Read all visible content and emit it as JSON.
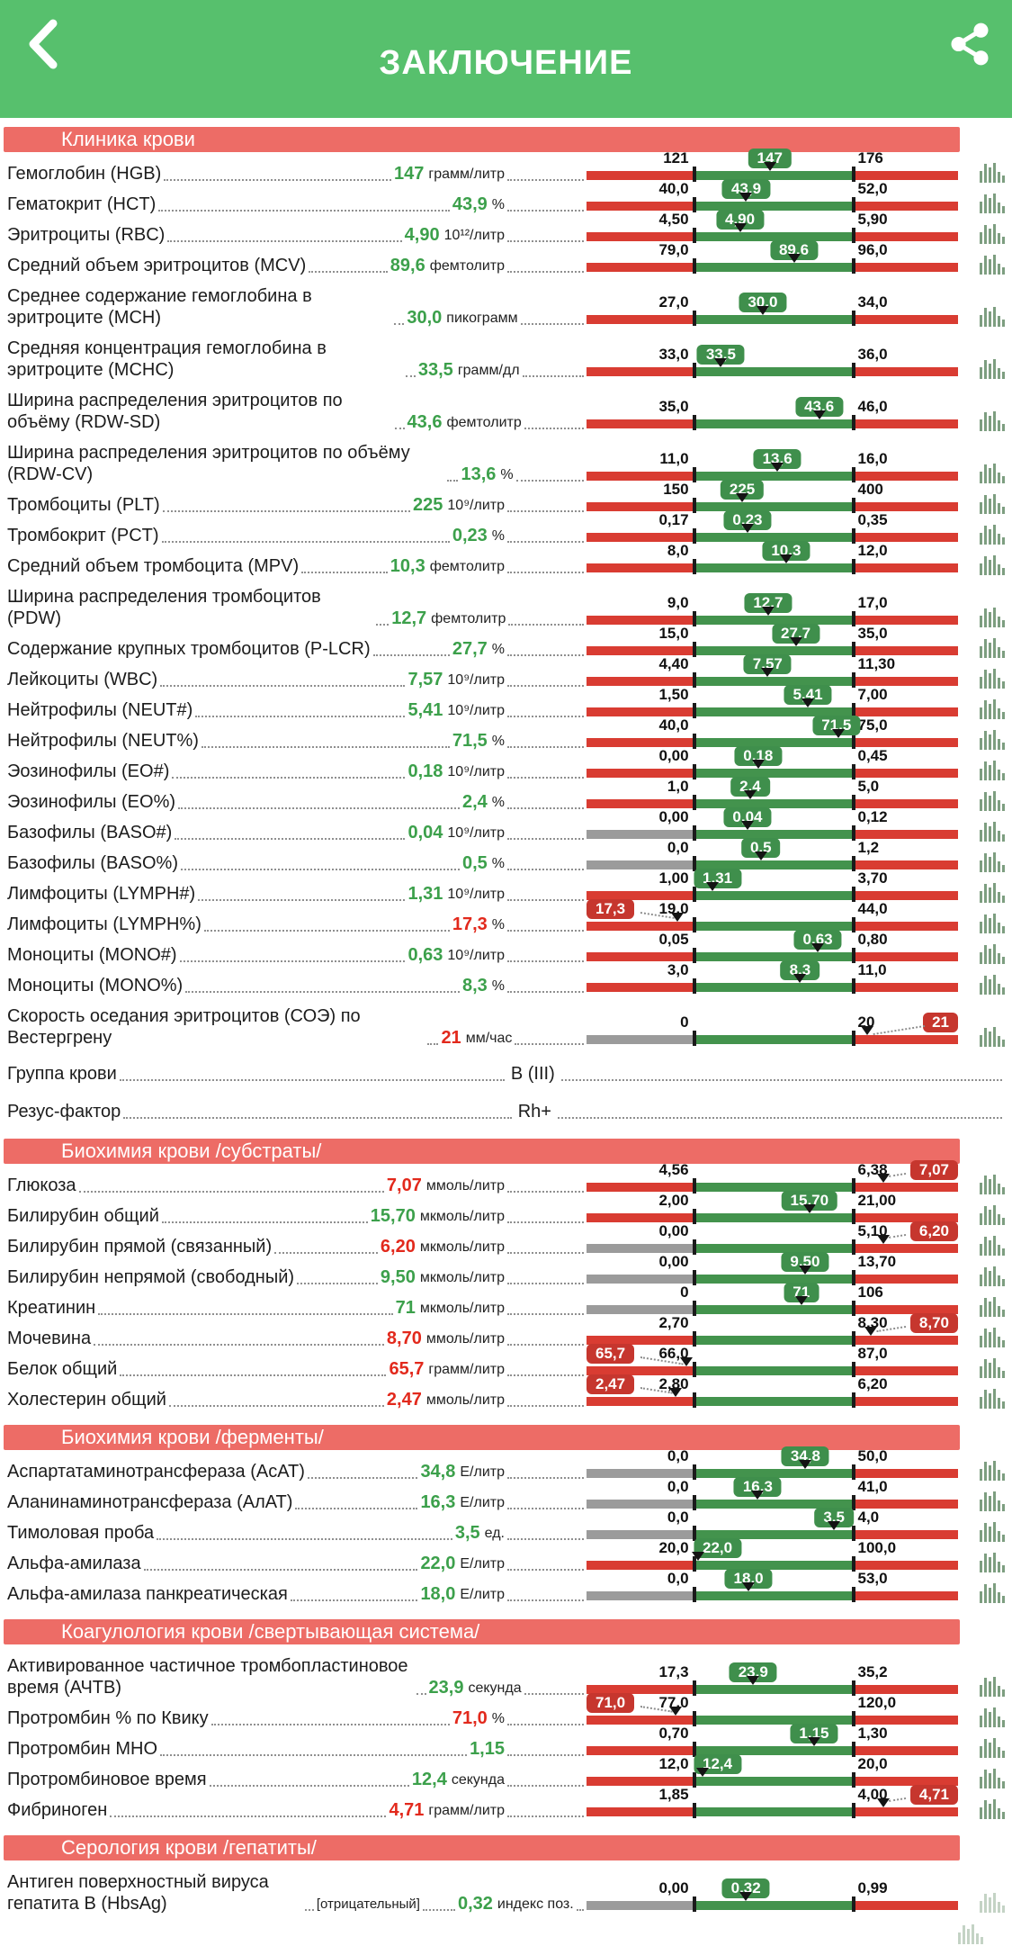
{
  "header": {
    "title": "ЗАКЛЮЧЕНИЕ"
  },
  "icons": {
    "back": "back-chevron-icon",
    "share": "share-icon",
    "row_chart": "histogram-icon"
  },
  "colors": {
    "header_green": "#57c06d",
    "section_red": "#ed6c66",
    "bar_red": "#d93c32",
    "bar_green": "#43934d",
    "bar_gray": "#9b9b9b",
    "badge_green": "#3f8f4c",
    "badge_red": "#c6362e",
    "value_green": "#3ca04b",
    "value_red": "#e2291c"
  },
  "bar_layout": {
    "tick_low_pct": 29,
    "tick_high_pct": 72
  },
  "sections": [
    {
      "title": "Клиника крови",
      "rows": [
        {
          "type": "range",
          "label": "Гемоглобин (HGB)",
          "value": "147",
          "unit": "грамм/литр",
          "min": "121",
          "max": "176",
          "num_value": 147,
          "num_min": 121,
          "num_max": 176,
          "status": "ok"
        },
        {
          "type": "range",
          "label": "Гематокрит (HCT)",
          "value": "43,9",
          "unit": "%",
          "min": "40,0",
          "max": "52,0",
          "num_value": 43.9,
          "num_min": 40,
          "num_max": 52,
          "status": "ok"
        },
        {
          "type": "range",
          "label": "Эритроциты (RBC)",
          "value": "4,90",
          "unit": "10¹²/литр",
          "min": "4,50",
          "max": "5,90",
          "num_value": 4.9,
          "num_min": 4.5,
          "num_max": 5.9,
          "status": "ok"
        },
        {
          "type": "range",
          "label": "Средний объем эритроцитов (MCV)",
          "value": "89,6",
          "unit": "фемтолитр",
          "min": "79,0",
          "max": "96,0",
          "num_value": 89.6,
          "num_min": 79,
          "num_max": 96,
          "status": "ok"
        },
        {
          "type": "range",
          "label": "Среднее содержание гемоглобина в эритроците (MCH)",
          "value": "30,0",
          "unit": "пикограмм",
          "min": "27,0",
          "max": "34,0",
          "num_value": 30,
          "num_min": 27,
          "num_max": 34,
          "status": "ok"
        },
        {
          "type": "range",
          "label": "Средняя концентрация гемоглобина в эритроците (MCHC)",
          "label_w": 470,
          "value": "33,5",
          "unit": "грамм/дл",
          "min": "33,0",
          "max": "36,0",
          "num_value": 33.5,
          "num_min": 33,
          "num_max": 36,
          "status": "ok"
        },
        {
          "type": "range",
          "label": "Ширина распределения эритроцитов по объёму (RDW-SD)",
          "value": "43,6",
          "unit": "фемтолитр",
          "min": "35,0",
          "max": "46,0",
          "num_value": 43.6,
          "num_min": 35,
          "num_max": 46,
          "status": "ok"
        },
        {
          "type": "range",
          "label": "Ширина распределения эритроцитов по объёму (RDW-CV)",
          "value": "13,6",
          "unit": "%",
          "min": "11,0",
          "max": "16,0",
          "num_value": 13.6,
          "num_min": 11,
          "num_max": 16,
          "status": "ok"
        },
        {
          "type": "range",
          "label": "Тромбоциты (PLT)",
          "value": "225",
          "unit": "10⁹/литр",
          "min": "150",
          "max": "400",
          "num_value": 225,
          "num_min": 150,
          "num_max": 400,
          "status": "ok"
        },
        {
          "type": "range",
          "label": "Тромбокрит (PCT)",
          "value": "0,23",
          "unit": "%",
          "min": "0,17",
          "max": "0,35",
          "num_value": 0.23,
          "num_min": 0.17,
          "num_max": 0.35,
          "status": "ok"
        },
        {
          "type": "range",
          "label": "Средний объем тромбоцита (MPV)",
          "value": "10,3",
          "unit": "фемтолитр",
          "min": "8,0",
          "max": "12,0",
          "num_value": 10.3,
          "num_min": 8,
          "num_max": 12,
          "status": "ok"
        },
        {
          "type": "range",
          "label": "Ширина распределения тромбоцитов (PDW)",
          "value": "12,7",
          "unit": "фемтолитр",
          "min": "9,0",
          "max": "17,0",
          "num_value": 12.7,
          "num_min": 9,
          "num_max": 17,
          "status": "ok"
        },
        {
          "type": "range",
          "label": "Содержание крупных тромбоцитов (P-LCR)",
          "value": "27,7",
          "unit": "%",
          "min": "15,0",
          "max": "35,0",
          "num_value": 27.7,
          "num_min": 15,
          "num_max": 35,
          "status": "ok"
        },
        {
          "type": "range",
          "label": "Лейкоциты (WBC)",
          "value": "7,57",
          "unit": "10⁹/литр",
          "min": "4,40",
          "max": "11,30",
          "num_value": 7.57,
          "num_min": 4.4,
          "num_max": 11.3,
          "status": "ok"
        },
        {
          "type": "range",
          "label": "Нейтрофилы (NEUT#)",
          "value": "5,41",
          "unit": "10⁹/литр",
          "min": "1,50",
          "max": "7,00",
          "num_value": 5.41,
          "num_min": 1.5,
          "num_max": 7,
          "status": "ok"
        },
        {
          "type": "range",
          "label": "Нейтрофилы (NEUT%)",
          "value": "71,5",
          "unit": "%",
          "min": "40,0",
          "max": "75,0",
          "num_value": 71.5,
          "num_min": 40,
          "num_max": 75,
          "status": "ok"
        },
        {
          "type": "range",
          "label": "Эозинофилы (EO#)",
          "value": "0,18",
          "unit": "10⁹/литр",
          "min": "0,00",
          "max": "0,45",
          "num_value": 0.18,
          "num_min": 0,
          "num_max": 0.45,
          "status": "ok"
        },
        {
          "type": "range",
          "label": "Эозинофилы (EO%)",
          "value": "2,4",
          "unit": "%",
          "min": "1,0",
          "max": "5,0",
          "num_value": 2.4,
          "num_min": 1,
          "num_max": 5,
          "status": "ok"
        },
        {
          "type": "range",
          "label": "Базофилы (BASO#)",
          "value": "0,04",
          "unit": "10⁹/литр",
          "min": "0,00",
          "max": "0,12",
          "num_value": 0.04,
          "num_min": 0,
          "num_max": 0.12,
          "status": "ok",
          "gray_left": true
        },
        {
          "type": "range",
          "label": "Базофилы (BASO%)",
          "value": "0,5",
          "unit": "%",
          "min": "0,0",
          "max": "1,2",
          "num_value": 0.5,
          "num_min": 0,
          "num_max": 1.2,
          "status": "ok",
          "gray_left": true
        },
        {
          "type": "range",
          "label": "Лимфоциты (LYMPH#)",
          "value": "1,31",
          "unit": "10⁹/литр",
          "min": "1,00",
          "max": "3,70",
          "num_value": 1.31,
          "num_min": 1,
          "num_max": 3.7,
          "status": "ok"
        },
        {
          "type": "range",
          "label": "Лимфоциты (LYMPH%)",
          "value": "17,3",
          "unit": "%",
          "min": "19,0",
          "max": "44,0",
          "num_value": 17.3,
          "num_min": 19,
          "num_max": 44,
          "status": "low"
        },
        {
          "type": "range",
          "label": "Моноциты (MONO#)",
          "value": "0,63",
          "unit": "10⁹/литр",
          "min": "0,05",
          "max": "0,80",
          "num_value": 0.63,
          "num_min": 0.05,
          "num_max": 0.8,
          "status": "ok"
        },
        {
          "type": "range",
          "label": "Моноциты (MONO%)",
          "value": "8,3",
          "unit": "%",
          "min": "3,0",
          "max": "11,0",
          "num_value": 8.3,
          "num_min": 3,
          "num_max": 11,
          "status": "ok"
        },
        {
          "type": "range",
          "label": "Скорость оседания эритроцитов (СОЭ) по Вестергрену",
          "label_w": 530,
          "value": "21",
          "unit": "мм/час",
          "min": "0",
          "max": "20",
          "num_value": 21,
          "num_min": 0,
          "num_max": 20,
          "status": "high",
          "gray_left": true
        },
        {
          "type": "text",
          "label": "Группа крови",
          "value": "B (III)"
        },
        {
          "type": "text",
          "label": "Резус-фактор",
          "value": "Rh+"
        }
      ]
    },
    {
      "title": "Биохимия крови /субстраты/",
      "rows": [
        {
          "type": "range",
          "label": "Глюкоза",
          "value": "7,07",
          "unit": "ммоль/литр",
          "min": "4,56",
          "max": "6,38",
          "num_value": 7.07,
          "num_min": 4.56,
          "num_max": 6.38,
          "status": "high"
        },
        {
          "type": "range",
          "label": "Билирубин общий",
          "value": "15,70",
          "unit": "мкмоль/литр",
          "min": "2,00",
          "max": "21,00",
          "num_value": 15.7,
          "num_min": 2,
          "num_max": 21,
          "status": "ok"
        },
        {
          "type": "range",
          "label": "Билирубин прямой (связанный)",
          "value": "6,20",
          "unit": "мкмоль/литр",
          "min": "0,00",
          "max": "5,10",
          "num_value": 6.2,
          "num_min": 0,
          "num_max": 5.1,
          "status": "high",
          "gray_left": true
        },
        {
          "type": "range",
          "label": "Билирубин непрямой (свободный)",
          "value": "9,50",
          "unit": "мкмоль/литр",
          "min": "0,00",
          "max": "13,70",
          "num_value": 9.5,
          "num_min": 0,
          "num_max": 13.7,
          "status": "ok",
          "gray_left": true
        },
        {
          "type": "range",
          "label": "Креатинин",
          "value": "71",
          "unit": "мкмоль/литр",
          "min": "0",
          "max": "106",
          "num_value": 71,
          "num_min": 0,
          "num_max": 106,
          "status": "ok",
          "gray_left": true
        },
        {
          "type": "range",
          "label": "Мочевина",
          "value": "8,70",
          "unit": "ммоль/литр",
          "min": "2,70",
          "max": "8,30",
          "num_value": 8.7,
          "num_min": 2.7,
          "num_max": 8.3,
          "status": "high"
        },
        {
          "type": "range",
          "label": "Белок общий",
          "value": "65,7",
          "unit": "грамм/литр",
          "min": "66,0",
          "max": "87,0",
          "num_value": 65.7,
          "num_min": 66,
          "num_max": 87,
          "status": "low"
        },
        {
          "type": "range",
          "label": "Холестерин общий",
          "value": "2,47",
          "unit": "ммоль/литр",
          "min": "2,80",
          "max": "6,20",
          "num_value": 2.47,
          "num_min": 2.8,
          "num_max": 6.2,
          "status": "low"
        }
      ]
    },
    {
      "title": "Биохимия крови /ферменты/",
      "rows": [
        {
          "type": "range",
          "label": "Аспартатаминотрансфераза (АсАТ)",
          "value": "34,8",
          "unit": "Е/литр",
          "min": "0,0",
          "max": "50,0",
          "num_value": 34.8,
          "num_min": 0,
          "num_max": 50,
          "status": "ok",
          "gray_left": true
        },
        {
          "type": "range",
          "label": "Аланинаминотрансфераза (АлАТ)",
          "value": "16,3",
          "unit": "Е/литр",
          "min": "0,0",
          "max": "41,0",
          "num_value": 16.3,
          "num_min": 0,
          "num_max": 41,
          "status": "ok",
          "gray_left": true
        },
        {
          "type": "range",
          "label": "Тимоловая проба",
          "value": "3,5",
          "unit": "ед.",
          "min": "0,0",
          "max": "4,0",
          "num_value": 3.5,
          "num_min": 0,
          "num_max": 4,
          "status": "ok",
          "gray_left": true
        },
        {
          "type": "range",
          "label": "Альфа-амилаза",
          "value": "22,0",
          "unit": "Е/литр",
          "min": "20,0",
          "max": "100,0",
          "num_value": 22,
          "num_min": 20,
          "num_max": 100,
          "status": "ok"
        },
        {
          "type": "range",
          "label": "Альфа-амилаза панкреатическая",
          "value": "18,0",
          "unit": "Е/литр",
          "min": "0,0",
          "max": "53,0",
          "num_value": 18,
          "num_min": 0,
          "num_max": 53,
          "status": "ok",
          "gray_left": true
        }
      ]
    },
    {
      "title": "Коагулология крови /свертывающая система/",
      "rows": [
        {
          "type": "range",
          "label": "Активированное частичное тромбопластиновое время (АЧТВ)",
          "label_w": 555,
          "value": "23,9",
          "unit": "секунда",
          "min": "17,3",
          "max": "35,2",
          "num_value": 23.9,
          "num_min": 17.3,
          "num_max": 35.2,
          "status": "ok"
        },
        {
          "type": "range",
          "label": "Протромбин % по Квику",
          "value": "71,0",
          "unit": "%",
          "min": "77,0",
          "max": "120,0",
          "num_value": 71,
          "num_min": 77,
          "num_max": 120,
          "status": "low"
        },
        {
          "type": "range",
          "label": "Протромбин МНО",
          "value": "1,15",
          "unit": "",
          "min": "0,70",
          "max": "1,30",
          "num_value": 1.15,
          "num_min": 0.7,
          "num_max": 1.3,
          "status": "ok"
        },
        {
          "type": "range",
          "label": "Протромбиновое время",
          "value": "12,4",
          "unit": "секунда",
          "min": "12,0",
          "max": "20,0",
          "num_value": 12.4,
          "num_min": 12,
          "num_max": 20,
          "status": "ok"
        },
        {
          "type": "range",
          "label": "Фибриноген",
          "value": "4,71",
          "unit": "грамм/литр",
          "min": "1,85",
          "max": "4,00",
          "num_value": 4.71,
          "num_min": 1.85,
          "num_max": 4,
          "status": "high"
        }
      ]
    },
    {
      "title": "Серология крови /гепатиты/",
      "rows": [
        {
          "type": "range",
          "label": "Антиген поверхностный вируса гепатита B (HbsAg)",
          "label_w": 355,
          "prefix": "[отрицательный]",
          "value": "0,32",
          "unit": "индекс поз.",
          "min": "0,00",
          "max": "0,99",
          "num_value": 0.32,
          "num_min": 0,
          "num_max": 0.99,
          "status": "ok",
          "gray_left": true,
          "icon_faded": true
        }
      ]
    }
  ]
}
